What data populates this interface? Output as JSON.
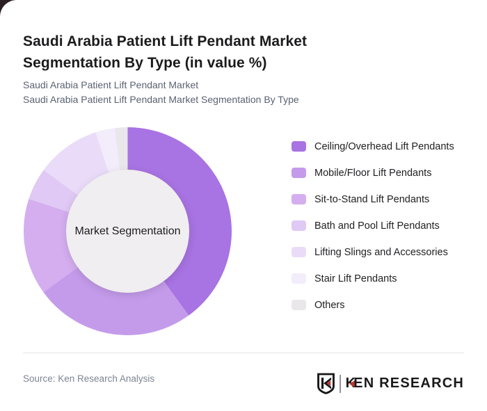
{
  "page": {
    "corner_accent_color": "#2b1f24",
    "card_background": "#ffffff"
  },
  "header": {
    "title": "Saudi Arabia Patient Lift Pendant Market Segmentation By Type (in value %)",
    "subtitle_line1": "Saudi Arabia Patient Lift Pendant Market",
    "subtitle_line2": "Saudi Arabia Patient Lift Pendant Market Segmentation By Type"
  },
  "chart_data": {
    "type": "pie",
    "donut": true,
    "title": "Saudi Arabia Patient Lift Pendant Market Segmentation By Type (in value %)",
    "center_label": "Market Segmentation",
    "start_angle_deg": 0,
    "direction": "clockwise",
    "legend_position": "right",
    "hole_color": "#f0eef0",
    "segments": [
      {
        "label": "Ceiling/Overhead Lift Pendants",
        "value": 40,
        "color": "#a873e2"
      },
      {
        "label": "Mobile/Floor Lift Pendants",
        "value": 25,
        "color": "#c49bea"
      },
      {
        "label": "Sit-to-Stand Lift Pendants",
        "value": 15,
        "color": "#d4aeef"
      },
      {
        "label": "Bath and Pool Lift Pendants",
        "value": 5,
        "color": "#e0c9f4"
      },
      {
        "label": "Lifting Slings and Accessories",
        "value": 10,
        "color": "#eadcf8"
      },
      {
        "label": "Stair Lift Pendants",
        "value": 3,
        "color": "#f3ecfb"
      },
      {
        "label": "Others",
        "value": 2,
        "color": "#e9e7ea"
      }
    ]
  },
  "footer": {
    "source": "Source: Ken Research Analysis",
    "brand_name_k": "K",
    "brand_name_rest": "EN RESEARCH",
    "brand_red": "#bf3730",
    "brand_dark": "#1a1a1c"
  }
}
